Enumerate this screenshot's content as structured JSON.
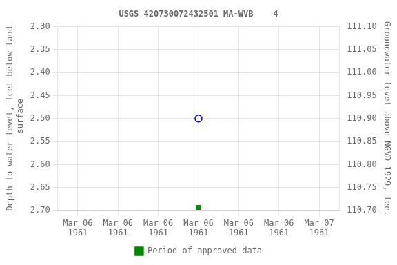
{
  "chart_data": {
    "type": "scatter",
    "title": "USGS 420730072432501 MA-WVB    4",
    "ylabel": "Depth to water level, feet below land\n surface",
    "y2label": "Groundwater level above NGVD 1929, feet",
    "categories": [
      "Mar 06\n1961",
      "Mar 06\n1961",
      "Mar 06\n1961",
      "Mar 06\n1961",
      "Mar 06\n1961",
      "Mar 06\n1961",
      "Mar 07\n1961"
    ],
    "series": [
      {
        "color": "#0000cc",
        "marker": "open_circle",
        "values": [
          null,
          null,
          null,
          2.5,
          null,
          null,
          null
        ]
      },
      {
        "name": "Period of approved data",
        "color": "#008800",
        "marker": "square",
        "values": [
          null,
          null,
          null,
          2.693,
          null,
          null,
          null
        ]
      }
    ],
    "ylim": [
      2.7,
      2.3
    ],
    "yticks": [
      {
        "value": 2.3,
        "label": "2.30"
      },
      2.35,
      {
        "value": 2.4,
        "label": "2.40"
      },
      2.45,
      {
        "value": 2.5,
        "label": "2.50"
      },
      2.55,
      {
        "value": 2.6,
        "label": "2.60"
      },
      2.65,
      {
        "value": 2.7,
        "label": "2.70"
      }
    ],
    "y2lim": [
      110.7,
      111.1
    ],
    "y2ticks": [
      {
        "value": 111.1,
        "label": "111.10"
      },
      111.05,
      {
        "value": 111,
        "label": "111.00"
      },
      110.95,
      {
        "value": 110.9,
        "label": "110.90"
      },
      110.85,
      {
        "value": 110.8,
        "label": "110.80"
      },
      110.75,
      {
        "value": 110.7,
        "label": "110.70"
      }
    ],
    "grid": true,
    "legend": "bottom"
  }
}
